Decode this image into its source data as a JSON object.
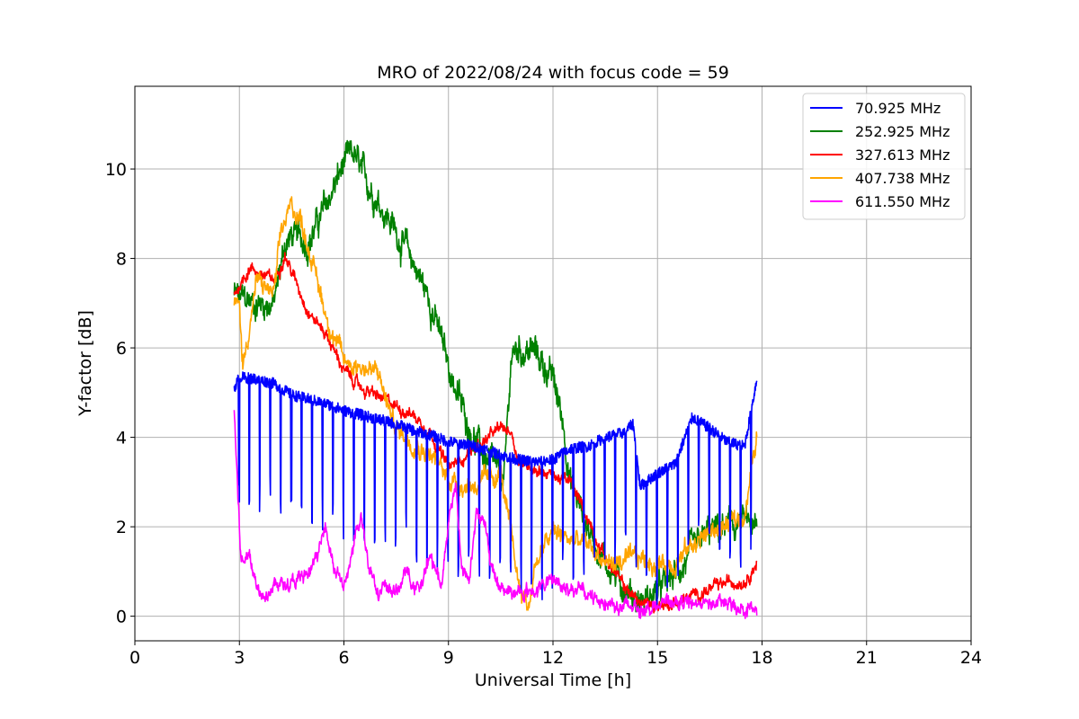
{
  "chart_data": {
    "type": "line",
    "title": "MRO of 2022/08/24 with focus code = 59",
    "xlabel": "Universal Time [h]",
    "ylabel": "Y-factor [dB]",
    "xlim": [
      0,
      24
    ],
    "ylim": [
      -0.55,
      11.85
    ],
    "xticks": [
      0,
      3,
      6,
      9,
      12,
      15,
      18,
      21,
      24
    ],
    "yticks": [
      0,
      2,
      4,
      6,
      8,
      10
    ],
    "grid": true,
    "legend_position": "top-right",
    "series": [
      {
        "name": " 70.925 MHz",
        "color": "#0000ff",
        "x": [
          2.85,
          3.0,
          3.5,
          4.0,
          4.5,
          5.0,
          5.5,
          6.0,
          6.5,
          7.0,
          7.5,
          8.0,
          8.5,
          9.0,
          9.5,
          10.0,
          10.5,
          11.0,
          11.5,
          12.0,
          12.5,
          13.0,
          13.5,
          14.0,
          14.3,
          14.5,
          15.0,
          15.5,
          16.0,
          16.5,
          17.0,
          17.5,
          17.85
        ],
        "y": [
          5.1,
          5.35,
          5.3,
          5.2,
          4.95,
          4.85,
          4.75,
          4.6,
          4.5,
          4.4,
          4.3,
          4.15,
          4.05,
          3.9,
          3.85,
          3.75,
          3.6,
          3.5,
          3.45,
          3.5,
          3.75,
          3.8,
          4.0,
          4.1,
          4.3,
          2.9,
          3.2,
          3.4,
          4.45,
          4.2,
          3.9,
          3.8,
          5.3
        ],
        "dip_interval_h": 0.3,
        "dip_depth": 2.5
      },
      {
        "name": "252.925 MHz",
        "color": "#008000",
        "x": [
          2.85,
          3.0,
          3.5,
          4.0,
          4.3,
          4.5,
          5.0,
          5.5,
          6.0,
          6.3,
          6.5,
          7.0,
          7.5,
          8.0,
          8.5,
          9.0,
          9.5,
          10.0,
          10.3,
          10.6,
          10.8,
          11.0,
          11.5,
          12.0,
          12.3,
          12.5,
          13.0,
          13.5,
          14.0,
          14.5,
          15.0,
          15.5,
          16.0,
          16.5,
          17.0,
          17.5,
          17.85
        ],
        "y": [
          7.2,
          7.1,
          7.0,
          7.0,
          8.3,
          8.5,
          8.4,
          9.2,
          10.1,
          10.3,
          9.9,
          9.3,
          8.6,
          7.9,
          7.0,
          5.6,
          4.4,
          3.6,
          3.3,
          3.0,
          5.8,
          6.0,
          5.9,
          5.3,
          4.3,
          3.0,
          2.0,
          1.2,
          0.7,
          0.3,
          0.55,
          0.9,
          1.4,
          1.85,
          2.0,
          2.1,
          1.85
        ],
        "noise": 0.6
      },
      {
        "name": "327.613 MHz",
        "color": "#ff0000",
        "x": [
          2.85,
          3.0,
          3.3,
          3.5,
          4.0,
          4.3,
          4.5,
          5.0,
          5.5,
          6.0,
          6.5,
          7.0,
          7.5,
          8.0,
          8.5,
          9.0,
          9.5,
          10.0,
          10.5,
          10.8,
          11.0,
          11.5,
          12.0,
          12.5,
          13.0,
          13.5,
          14.0,
          14.5,
          15.0,
          15.5,
          16.0,
          16.5,
          17.0,
          17.5,
          17.85
        ],
        "y": [
          7.2,
          7.4,
          7.8,
          7.7,
          7.5,
          8.1,
          7.7,
          6.8,
          6.3,
          5.5,
          5.1,
          4.9,
          4.7,
          4.5,
          4.1,
          3.3,
          3.6,
          3.9,
          4.2,
          4.15,
          3.5,
          3.3,
          3.15,
          3.0,
          2.2,
          1.3,
          0.7,
          0.3,
          0.25,
          0.3,
          0.45,
          0.6,
          0.75,
          0.8,
          1.2
        ],
        "noise": 0.25
      },
      {
        "name": "407.738 MHz",
        "color": "#ffa500",
        "x": [
          2.85,
          3.0,
          3.1,
          3.5,
          4.0,
          4.2,
          4.5,
          4.8,
          5.0,
          5.5,
          6.0,
          6.5,
          7.0,
          7.3,
          7.5,
          8.0,
          8.5,
          9.0,
          9.5,
          10.0,
          10.5,
          11.0,
          11.3,
          11.5,
          12.0,
          12.5,
          13.0,
          13.5,
          14.0,
          14.5,
          15.0,
          15.5,
          16.0,
          16.5,
          17.0,
          17.5,
          17.85
        ],
        "y": [
          7.0,
          6.9,
          5.6,
          7.5,
          7.2,
          8.6,
          9.2,
          8.8,
          8.2,
          6.7,
          5.7,
          5.6,
          5.4,
          4.6,
          4.2,
          3.9,
          3.6,
          3.1,
          2.9,
          3.0,
          3.2,
          0.8,
          0.2,
          1.2,
          1.9,
          1.7,
          1.6,
          1.2,
          1.2,
          1.3,
          1.15,
          1.2,
          1.6,
          1.9,
          2.0,
          2.3,
          4.0
        ],
        "noise": 0.4
      },
      {
        "name": "611.550 MHz",
        "color": "#ff00ff",
        "x": [
          2.85,
          2.95,
          3.05,
          3.3,
          3.5,
          3.6,
          3.8,
          4.0,
          4.5,
          5.0,
          5.3,
          5.5,
          5.7,
          5.9,
          6.0,
          6.3,
          6.5,
          6.7,
          7.0,
          7.5,
          7.8,
          8.0,
          8.3,
          8.5,
          8.8,
          9.0,
          9.2,
          9.4,
          9.6,
          9.8,
          10.0,
          10.3,
          10.6,
          11.0,
          11.5,
          12.0,
          12.5,
          13.0,
          13.5,
          14.0,
          14.5,
          15.0,
          15.5,
          16.0,
          16.5,
          17.0,
          17.5,
          17.85
        ],
        "y": [
          4.7,
          2.8,
          1.2,
          1.4,
          0.7,
          0.55,
          0.6,
          0.7,
          0.75,
          0.9,
          1.5,
          2.0,
          1.2,
          0.8,
          0.6,
          1.6,
          2.2,
          1.2,
          0.6,
          0.55,
          1.0,
          0.6,
          0.8,
          1.4,
          0.6,
          2.2,
          3.0,
          1.0,
          0.8,
          2.4,
          2.1,
          0.9,
          0.6,
          0.5,
          0.6,
          0.8,
          0.65,
          0.45,
          0.35,
          0.2,
          0.2,
          0.25,
          0.3,
          0.3,
          0.3,
          0.25,
          0.2,
          0.15
        ],
        "noise": 0.3
      }
    ]
  }
}
